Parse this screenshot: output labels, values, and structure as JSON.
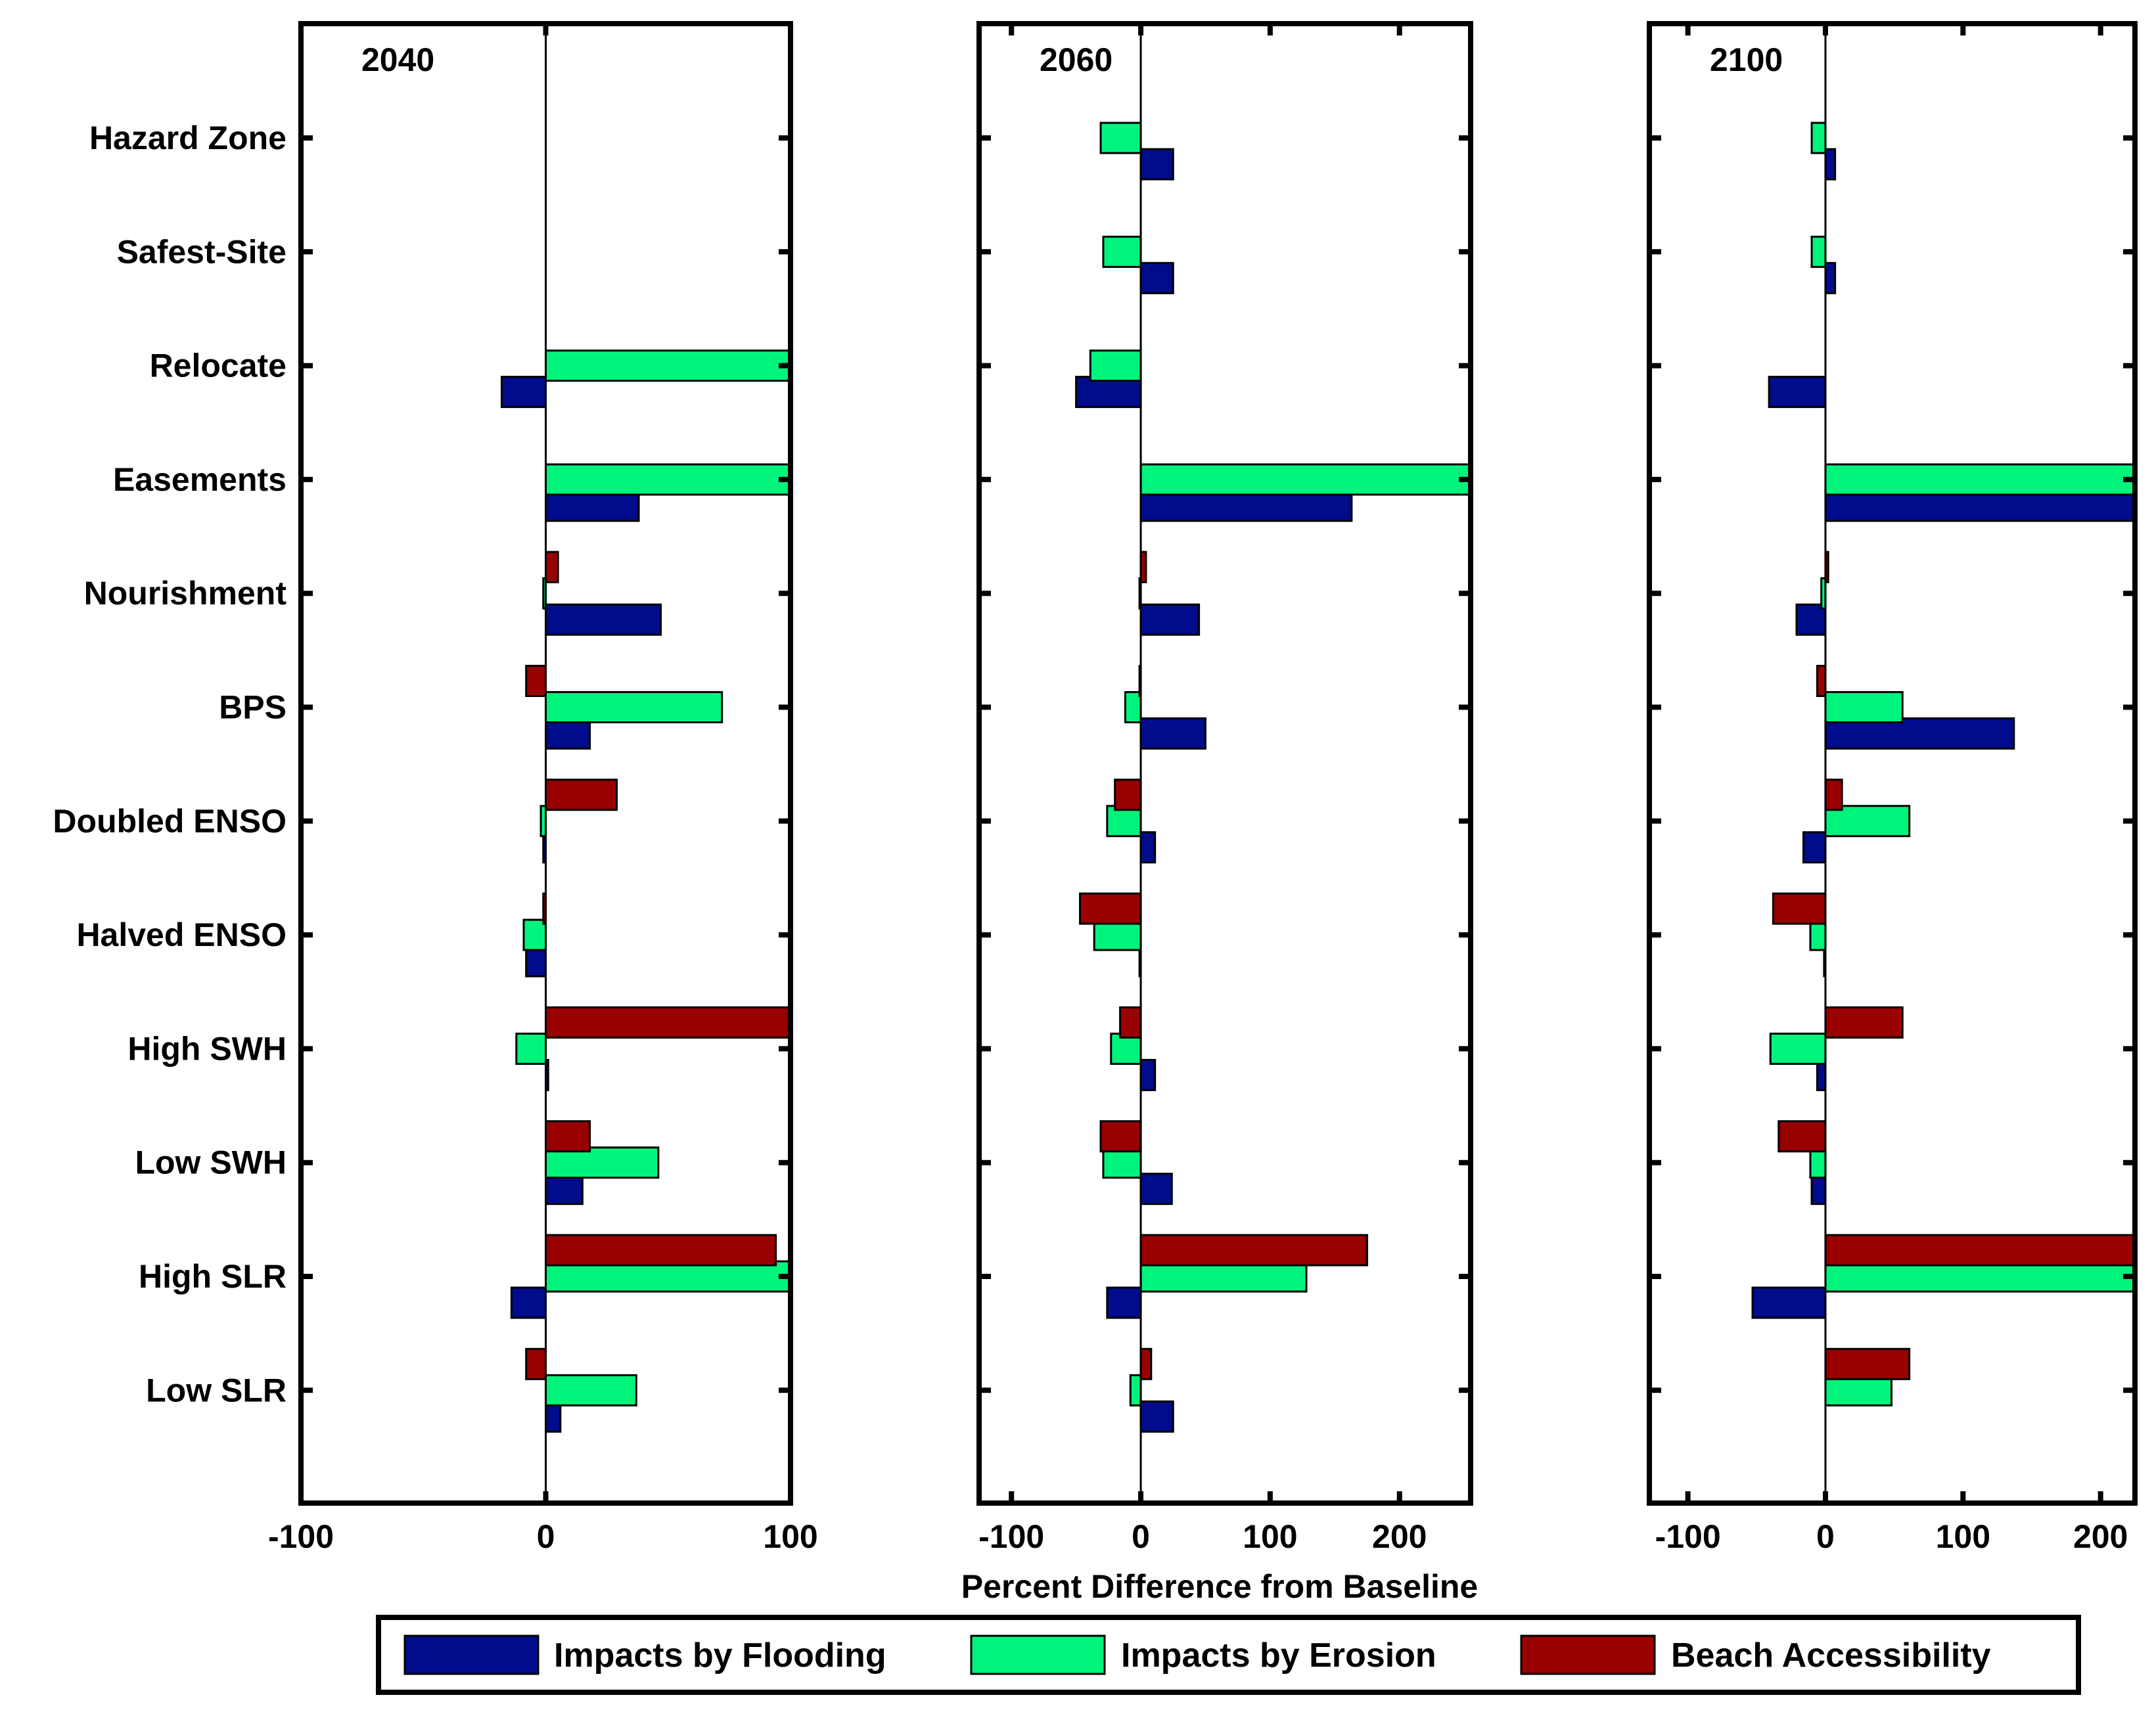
{
  "chart_data": {
    "type": "bar",
    "orientation": "horizontal",
    "xlabel": "Percent Difference from Baseline",
    "categories": [
      "Hazard Zone",
      "Safest-Site",
      "Relocate",
      "Easements",
      "Nourishment",
      "BPS",
      "Doubled ENSO",
      "Halved ENSO",
      "High SWH",
      "Low SWH",
      "High SLR",
      "Low SLR"
    ],
    "legend": [
      {
        "name": "Impacts by Flooding",
        "color": "#000c8c"
      },
      {
        "name": "Impacts by Erosion",
        "color": "#00f47c"
      },
      {
        "name": "Beach Accessibility",
        "color": "#990000"
      }
    ],
    "panels": [
      {
        "title": "2040",
        "xlim": [
          -100,
          100
        ],
        "ticks": [
          -100,
          0,
          100
        ],
        "tick_labels": [
          "-100",
          "0",
          "100"
        ],
        "series": [
          {
            "name": "Impacts by Flooding",
            "values": [
              0,
              0,
              -18,
              38,
              47,
              18,
              -1,
              -8,
              1,
              15,
              -14,
              6
            ]
          },
          {
            "name": "Impacts by Erosion",
            "values": [
              0,
              0,
              100,
              100,
              -1,
              72,
              -2,
              -9,
              -12,
              46,
              100,
              37
            ]
          },
          {
            "name": "Beach Accessibility",
            "values": [
              0,
              0,
              0,
              0,
              5,
              -8,
              29,
              -1,
              100,
              18,
              94,
              -8
            ]
          }
        ]
      },
      {
        "title": "2060",
        "xlim": [
          -125,
          255
        ],
        "ticks": [
          -100,
          0,
          100,
          200
        ],
        "tick_labels": [
          "-100",
          "0",
          "100",
          "200"
        ],
        "series": [
          {
            "name": "Impacts by Flooding",
            "values": [
              25,
              25,
              -50,
              163,
              45,
              50,
              11,
              -1,
              11,
              24,
              -26,
              25
            ]
          },
          {
            "name": "Impacts by Erosion",
            "values": [
              -31,
              -29,
              -39,
              255,
              -1,
              -12,
              -26,
              -36,
              -23,
              -29,
              128,
              -8
            ]
          },
          {
            "name": "Beach Accessibility",
            "values": [
              0,
              0,
              0,
              0,
              4,
              -1,
              -20,
              -47,
              -16,
              -31,
              175,
              8
            ]
          }
        ]
      },
      {
        "title": "2100",
        "xlim": [
          -128,
          225
        ],
        "ticks": [
          -100,
          0,
          100,
          200
        ],
        "tick_labels": [
          "-100",
          "0",
          "100",
          "200"
        ],
        "series": [
          {
            "name": "Impacts by Flooding",
            "values": [
              7,
              7,
              -41,
              225,
              -21,
              137,
              -16,
              -1,
              -6,
              -10,
              -53,
              0
            ]
          },
          {
            "name": "Impacts by Erosion",
            "values": [
              -10,
              -10,
              0,
              225,
              -3,
              56,
              61,
              -11,
              -40,
              -11,
              225,
              48
            ]
          },
          {
            "name": "Beach Accessibility",
            "values": [
              0,
              0,
              0,
              0,
              2,
              -6,
              12,
              -38,
              56,
              -34,
              225,
              61
            ]
          }
        ]
      }
    ]
  }
}
